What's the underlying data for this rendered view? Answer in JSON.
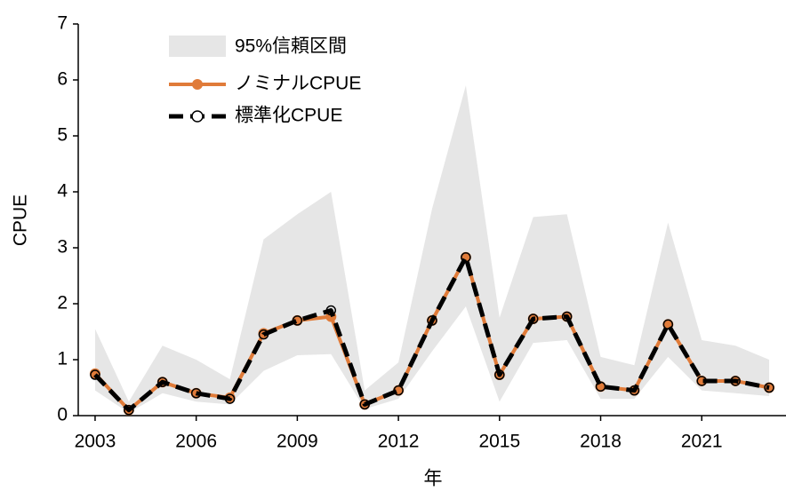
{
  "chart_data": {
    "type": "line",
    "x": [
      2003,
      2004,
      2005,
      2006,
      2007,
      2008,
      2009,
      2010,
      2011,
      2012,
      2013,
      2014,
      2015,
      2016,
      2017,
      2018,
      2019,
      2020,
      2021,
      2022,
      2023
    ],
    "band": {
      "name": "95%信頼区間",
      "color": "#e6e6e6",
      "lower": [
        0.45,
        0.05,
        0.4,
        0.25,
        0.2,
        0.8,
        1.08,
        1.1,
        0.12,
        0.3,
        1.15,
        1.95,
        0.25,
        1.3,
        1.35,
        0.3,
        0.3,
        1.05,
        0.45,
        0.4,
        0.35
      ],
      "upper": [
        1.55,
        0.25,
        1.25,
        1.0,
        0.65,
        3.15,
        3.6,
        4.0,
        0.45,
        0.95,
        3.7,
        5.9,
        1.75,
        3.55,
        3.6,
        1.05,
        0.9,
        3.45,
        1.35,
        1.25,
        1.0
      ]
    },
    "series": [
      {
        "name": "ノミナルCPUE",
        "color": "#e07b39",
        "values": [
          0.75,
          0.1,
          0.6,
          0.4,
          0.32,
          1.47,
          1.7,
          1.77,
          0.2,
          0.45,
          1.7,
          2.83,
          0.73,
          1.73,
          1.77,
          0.52,
          0.45,
          1.63,
          0.62,
          0.62,
          0.5
        ]
      },
      {
        "name": "標準化CPUE",
        "color": "#000000",
        "values": [
          0.73,
          0.1,
          0.6,
          0.4,
          0.3,
          1.45,
          1.7,
          1.88,
          0.2,
          0.45,
          1.7,
          2.83,
          0.73,
          1.73,
          1.77,
          0.52,
          0.45,
          1.63,
          0.62,
          0.62,
          0.5
        ]
      }
    ],
    "xlabel": "年",
    "ylabel": "CPUE",
    "xlim": [
      2002.5,
      2023.5
    ],
    "xticks": [
      2003,
      2006,
      2009,
      2012,
      2015,
      2018,
      2021
    ],
    "ylim": [
      0,
      7
    ],
    "yticks": [
      0,
      1,
      2,
      3,
      4,
      5,
      6,
      7
    ]
  }
}
